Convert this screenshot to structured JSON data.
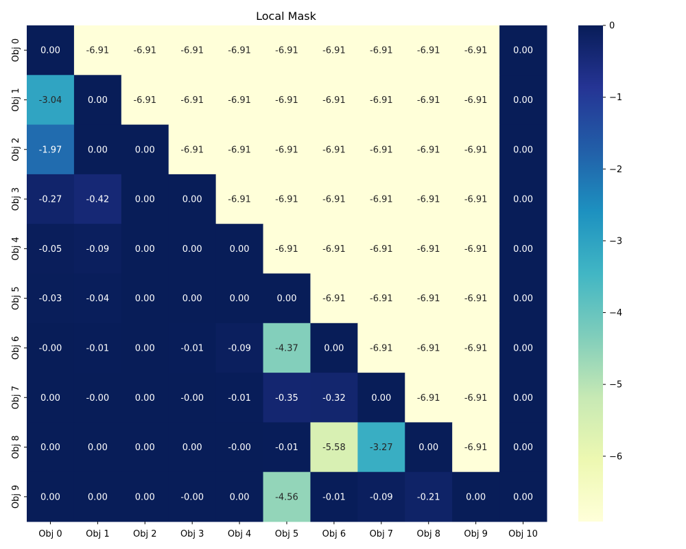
{
  "chart_data": {
    "type": "heatmap",
    "title": "Local Mask",
    "xlabel": "",
    "ylabel": "",
    "x_labels": [
      "Obj 0",
      "Obj 1",
      "Obj 2",
      "Obj 3",
      "Obj 4",
      "Obj 5",
      "Obj 6",
      "Obj 7",
      "Obj 8",
      "Obj 9",
      "Obj 10"
    ],
    "y_labels": [
      "Obj 0",
      "Obj 1",
      "Obj 2",
      "Obj 3",
      "Obj 4",
      "Obj 5",
      "Obj 6",
      "Obj 7",
      "Obj 8",
      "Obj 9"
    ],
    "values": [
      [
        0.0,
        -6.91,
        -6.91,
        -6.91,
        -6.91,
        -6.91,
        -6.91,
        -6.91,
        -6.91,
        -6.91,
        0.0
      ],
      [
        -3.04,
        0.0,
        -6.91,
        -6.91,
        -6.91,
        -6.91,
        -6.91,
        -6.91,
        -6.91,
        -6.91,
        0.0
      ],
      [
        -1.97,
        0.0,
        0.0,
        -6.91,
        -6.91,
        -6.91,
        -6.91,
        -6.91,
        -6.91,
        -6.91,
        0.0
      ],
      [
        -0.27,
        -0.42,
        0.0,
        0.0,
        -6.91,
        -6.91,
        -6.91,
        -6.91,
        -6.91,
        -6.91,
        0.0
      ],
      [
        -0.05,
        -0.09,
        0.0,
        0.0,
        0.0,
        -6.91,
        -6.91,
        -6.91,
        -6.91,
        -6.91,
        0.0
      ],
      [
        -0.03,
        -0.04,
        0.0,
        0.0,
        0.0,
        0.0,
        -6.91,
        -6.91,
        -6.91,
        -6.91,
        0.0
      ],
      [
        -0.0,
        -0.01,
        0.0,
        -0.01,
        -0.09,
        -4.37,
        0.0,
        -6.91,
        -6.91,
        -6.91,
        0.0
      ],
      [
        0.0,
        -0.0,
        0.0,
        -0.0,
        -0.01,
        -0.35,
        -0.32,
        0.0,
        -6.91,
        -6.91,
        0.0
      ],
      [
        0.0,
        0.0,
        0.0,
        0.0,
        -0.0,
        -0.01,
        -5.58,
        -3.27,
        0.0,
        -6.91,
        0.0
      ],
      [
        0.0,
        0.0,
        0.0,
        -0.0,
        0.0,
        -4.56,
        -0.01,
        -0.09,
        -0.21,
        0.0,
        0.0
      ]
    ],
    "cell_labels": [
      [
        "0.00",
        "-6.91",
        "-6.91",
        "-6.91",
        "-6.91",
        "-6.91",
        "-6.91",
        "-6.91",
        "-6.91",
        "-6.91",
        "0.00"
      ],
      [
        "-3.04",
        "0.00",
        "-6.91",
        "-6.91",
        "-6.91",
        "-6.91",
        "-6.91",
        "-6.91",
        "-6.91",
        "-6.91",
        "0.00"
      ],
      [
        "-1.97",
        "0.00",
        "0.00",
        "-6.91",
        "-6.91",
        "-6.91",
        "-6.91",
        "-6.91",
        "-6.91",
        "-6.91",
        "0.00"
      ],
      [
        "-0.27",
        "-0.42",
        "0.00",
        "0.00",
        "-6.91",
        "-6.91",
        "-6.91",
        "-6.91",
        "-6.91",
        "-6.91",
        "0.00"
      ],
      [
        "-0.05",
        "-0.09",
        "0.00",
        "0.00",
        "0.00",
        "-6.91",
        "-6.91",
        "-6.91",
        "-6.91",
        "-6.91",
        "0.00"
      ],
      [
        "-0.03",
        "-0.04",
        "0.00",
        "0.00",
        "0.00",
        "0.00",
        "-6.91",
        "-6.91",
        "-6.91",
        "-6.91",
        "0.00"
      ],
      [
        "-0.00",
        "-0.01",
        "0.00",
        "-0.01",
        "-0.09",
        "-4.37",
        "0.00",
        "-6.91",
        "-6.91",
        "-6.91",
        "0.00"
      ],
      [
        "0.00",
        "-0.00",
        "0.00",
        "-0.00",
        "-0.01",
        "-0.35",
        "-0.32",
        "0.00",
        "-6.91",
        "-6.91",
        "0.00"
      ],
      [
        "0.00",
        "0.00",
        "0.00",
        "0.00",
        "-0.00",
        "-0.01",
        "-5.58",
        "-3.27",
        "0.00",
        "-6.91",
        "0.00"
      ],
      [
        "0.00",
        "0.00",
        "0.00",
        "-0.00",
        "0.00",
        "-4.56",
        "-0.01",
        "-0.09",
        "-0.21",
        "0.00",
        "0.00"
      ]
    ],
    "colorbar": {
      "colormap": "YlGnBu",
      "range": [
        -6.91,
        0
      ],
      "ticks": [
        0,
        -1,
        -2,
        -3,
        -4,
        -5,
        -6
      ],
      "tick_labels": [
        "0",
        "−1",
        "−2",
        "−3",
        "−4",
        "−5",
        "−6"
      ]
    },
    "grid": false,
    "legend": "colorbar-right"
  }
}
